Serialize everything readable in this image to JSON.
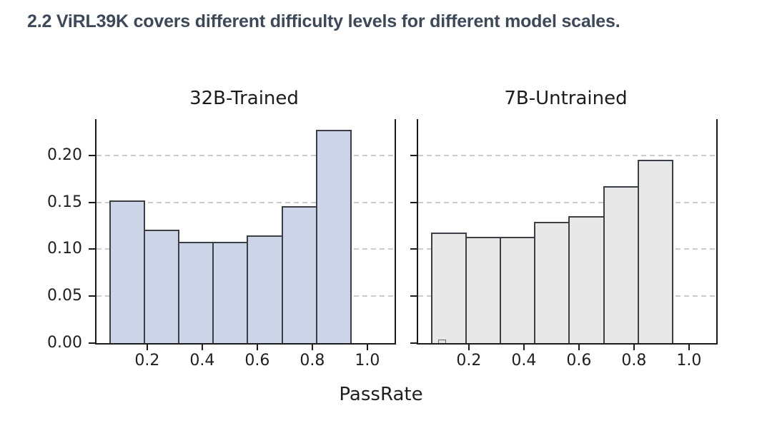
{
  "heading": {
    "text": "2.2 ViRL39K covers different difficulty levels for different model scales.",
    "color": "#3d4858"
  },
  "figure": {
    "xlabel": "PassRate",
    "background": "#ffffff",
    "text_color": "#1f1f1f",
    "spine_color": "#1c1c1c",
    "grid_color": "#cbcbcb"
  },
  "chart_data": [
    {
      "type": "bar",
      "subtype": "histogram",
      "title": "32B-Trained",
      "xlabel": "PassRate",
      "bin_edges": [
        0.0625,
        0.1875,
        0.3125,
        0.4375,
        0.5625,
        0.6875,
        0.8125,
        0.9375
      ],
      "values": [
        0.152,
        0.121,
        0.108,
        0.108,
        0.115,
        0.146,
        0.227
      ],
      "x_ticks": [
        0.2,
        0.4,
        0.6,
        0.8,
        1.0
      ],
      "x_tick_labels": [
        "0.2",
        "0.4",
        "0.6",
        "0.8",
        "1.0"
      ],
      "y_ticks": [
        0,
        0.05,
        0.1,
        0.15,
        0.2
      ],
      "y_tick_labels": [
        "0.00",
        "0.05",
        "0.10",
        "0.15",
        "0.20"
      ],
      "show_y_tick_labels": true,
      "xlim": [
        0.016,
        1.099
      ],
      "ylim": [
        0,
        0.2386
      ],
      "grid": {
        "axis": "y",
        "style": "dashed",
        "values": [
          0.05,
          0.1,
          0.15,
          0.2
        ]
      },
      "colors": {
        "bar_fill": "#ccd4e7",
        "bar_edge": "#3a3f46"
      }
    },
    {
      "type": "bar",
      "subtype": "histogram",
      "title": "7B-Untrained",
      "xlabel": "PassRate",
      "bin_edges": [
        0.0625,
        0.1875,
        0.3125,
        0.4375,
        0.5625,
        0.6875,
        0.8125,
        0.9375
      ],
      "values": [
        0.118,
        0.113,
        0.113,
        0.129,
        0.135,
        0.167,
        0.195
      ],
      "x_ticks": [
        0.2,
        0.4,
        0.6,
        0.8,
        1.0
      ],
      "x_tick_labels": [
        "0.2",
        "0.4",
        "0.6",
        "0.8",
        "1.0"
      ],
      "y_ticks": [
        0,
        0.05,
        0.1,
        0.15,
        0.2
      ],
      "y_tick_labels": [],
      "show_y_tick_labels": false,
      "xlim": [
        0.016,
        1.099
      ],
      "ylim": [
        0,
        0.2386
      ],
      "grid": {
        "axis": "y",
        "style": "dashed",
        "values": [
          0.05,
          0.1,
          0.15,
          0.2
        ]
      },
      "colors": {
        "bar_fill": "#e8e8e8",
        "bar_edge": "#3a3f46"
      },
      "artifact_bar": {
        "x0": 0.088,
        "x1": 0.118,
        "value": 0.004
      }
    }
  ]
}
